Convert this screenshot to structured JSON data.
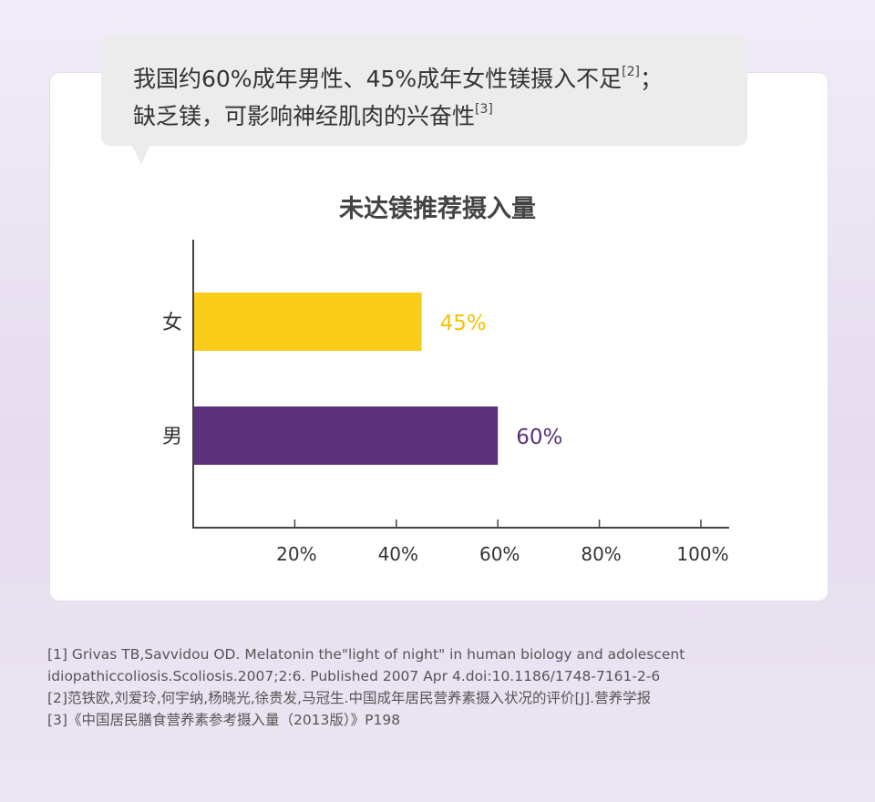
{
  "callout": {
    "line1": "我国约60%成年男性、45%成年女性镁摄入不足",
    "line1_ref": "[2]",
    "line1_end": "；",
    "line2": "缺乏镁，可影响神经肌肉的兴奋性",
    "line2_ref": "[3]"
  },
  "chart_data": {
    "type": "bar",
    "orientation": "horizontal",
    "title": "未达镁推荐摄入量",
    "categories": [
      "女",
      "男"
    ],
    "values": [
      45,
      60
    ],
    "value_labels": [
      "45%",
      "60%"
    ],
    "bar_colors": [
      "#fbcd1b",
      "#5b3179"
    ],
    "label_colors": [
      "#f2c300",
      "#5b3179"
    ],
    "xlim": [
      0,
      100
    ],
    "xticks": [
      20,
      40,
      60,
      80,
      100
    ],
    "xtick_labels": [
      "20%",
      "40%",
      "60%",
      "80%",
      "100%"
    ],
    "xlabel": "",
    "ylabel": "",
    "grid": false,
    "legend": "none"
  },
  "references": [
    "[1] Grivas TB,Savvidou OD. Melatonin the\"light of night\" in human biology and adolescent",
    "idiopathiccoliosis.Scoliosis.2007;2:6. Published 2007 Apr 4.doi:10.1186/1748-7161-2-6",
    "[2]范铁欧,刘爱玲,何宇纳,杨晓光,徐贵发,马冠生.中国成年居民营养素摄入状况的评价[J].营养学报",
    "[3]《中国居民膳食营养素参考摄入量（2013版）》P198"
  ],
  "colors": {
    "axis": "#444444",
    "text": "#333333",
    "bubble": "#ececec"
  }
}
